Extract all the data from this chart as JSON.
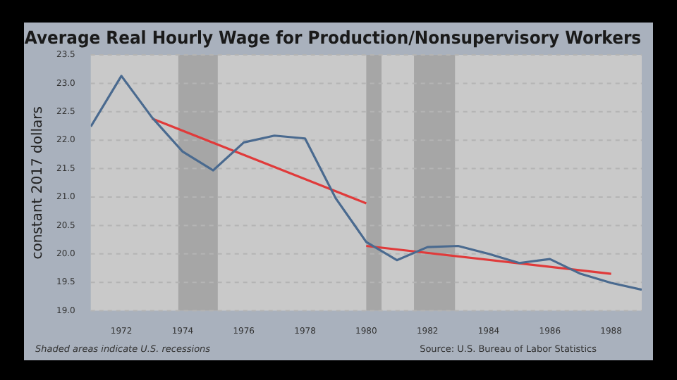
{
  "chart_data": {
    "type": "line",
    "title": "Average Real Hourly Wage for Production/Nonsupervisory Workers",
    "ylabel": "constant 2017 dollars",
    "x": [
      1971,
      1972,
      1973,
      1974,
      1975,
      1976,
      1977,
      1978,
      1979,
      1980,
      1981,
      1982,
      1983,
      1984,
      1985,
      1986,
      1987,
      1988,
      1989
    ],
    "series": [
      {
        "color": "#4a6a8f",
        "values": [
          22.24,
          23.13,
          22.4,
          21.8,
          21.47,
          21.96,
          22.08,
          22.03,
          20.98,
          20.21,
          19.89,
          20.12,
          20.14,
          20.0,
          19.84,
          19.91,
          19.65,
          19.49,
          19.37
        ]
      },
      {
        "color": "#e03a3a",
        "x": [
          1973,
          1980
        ],
        "values": [
          22.38,
          20.89
        ]
      },
      {
        "color": "#e03a3a",
        "x": [
          1980,
          1988
        ],
        "values": [
          20.14,
          19.65
        ]
      }
    ],
    "xlim": [
      1971,
      1989
    ],
    "xticks": [
      1972,
      1974,
      1976,
      1978,
      1980,
      1982,
      1984,
      1986,
      1988
    ],
    "ylim": [
      19,
      23.5
    ],
    "yticks": [
      {
        "value": 19,
        "label": "19.0"
      },
      19.5,
      {
        "value": 20,
        "label": "20.0"
      },
      20.5,
      {
        "value": 21,
        "label": "21.0"
      },
      21.5,
      {
        "value": 22,
        "label": "22.0"
      },
      22.5,
      {
        "value": 23,
        "label": "23.0"
      },
      23.5
    ],
    "bands": [
      {
        "axis": "x",
        "from": 1973.86,
        "to": 1975.15,
        "color": "#a6a6a6"
      },
      {
        "axis": "x",
        "from": 1980.0,
        "to": 1980.5,
        "color": "#a6a6a6"
      },
      {
        "axis": "x",
        "from": 1981.56,
        "to": 1982.9,
        "color": "#a6a6a6"
      }
    ],
    "grid": "y",
    "legend": false,
    "marker": "none",
    "line_style": "solid",
    "annotations": [
      "Shaded areas indicate U.S. recessions",
      "Source: U.S. Bureau of Labor Statistics"
    ]
  }
}
